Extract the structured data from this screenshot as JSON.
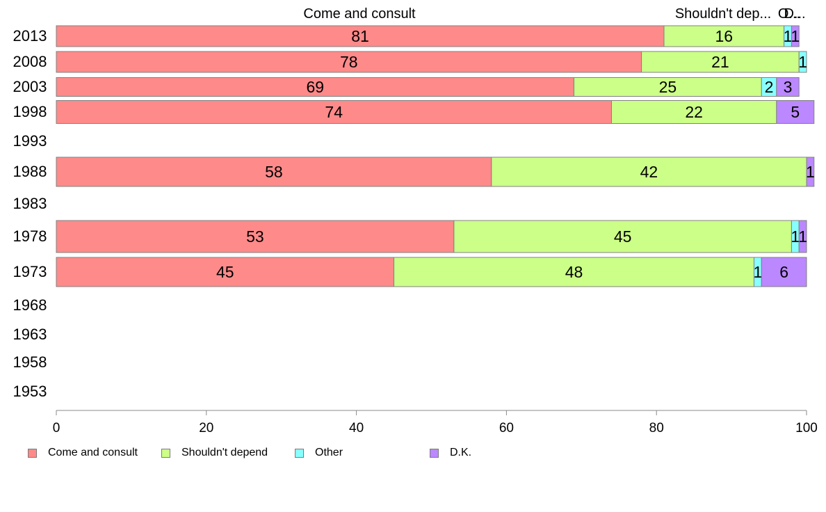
{
  "chart_data": {
    "type": "bar",
    "orientation": "horizontal",
    "stacked": true,
    "categories": [
      "2013",
      "2008",
      "2003",
      "1998",
      "1993",
      "1988",
      "1983",
      "1978",
      "1973",
      "1968",
      "1963",
      "1958",
      "1953"
    ],
    "series": [
      {
        "name": "Come and consult",
        "color": "#ff8a8a",
        "values": [
          81,
          78,
          69,
          74,
          null,
          58,
          null,
          53,
          45,
          null,
          null,
          null,
          null
        ],
        "labels": [
          "81",
          "78",
          "69",
          "74",
          "",
          "58",
          "",
          "53",
          "45",
          "",
          "",
          "",
          ""
        ]
      },
      {
        "name": "Shouldn't depend",
        "color": "#ccff88",
        "values": [
          16,
          21,
          25,
          22,
          null,
          42,
          null,
          45,
          48,
          null,
          null,
          null,
          null
        ],
        "labels": [
          "16",
          "21",
          "25",
          "22",
          "",
          "42",
          "",
          "45",
          "48",
          "",
          "",
          "",
          ""
        ]
      },
      {
        "name": "Other",
        "color": "#88ffff",
        "values": [
          1,
          1,
          2,
          0,
          null,
          0,
          null,
          1,
          1,
          null,
          null,
          null,
          null
        ],
        "labels": [
          "1",
          "1",
          "2",
          "",
          "",
          "",
          "",
          "1",
          "1",
          "",
          "",
          "",
          ""
        ]
      },
      {
        "name": "D.K.",
        "color": "#bb88ff",
        "values": [
          1,
          0,
          3,
          5,
          null,
          1,
          null,
          1,
          6,
          null,
          null,
          null,
          null
        ],
        "labels": [
          "1",
          "",
          "3",
          "5",
          "",
          "1",
          "",
          "1",
          "6",
          "",
          "",
          "",
          ""
        ]
      }
    ],
    "top_labels": [
      "Come and consult",
      "Shouldn't dep...",
      "O...",
      "D..."
    ],
    "xlim": [
      0,
      100
    ],
    "xticks": [
      "0",
      "20",
      "40",
      "60",
      "80",
      "100"
    ],
    "legend_position": "bottom-left",
    "grid": false,
    "title": "",
    "xlabel": "",
    "ylabel": ""
  }
}
